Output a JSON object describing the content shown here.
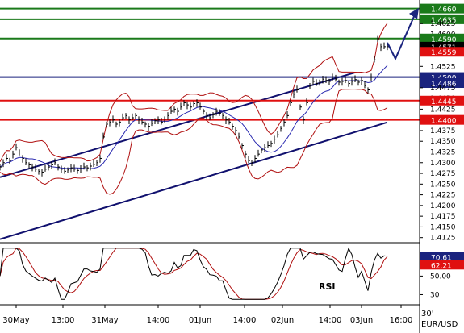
{
  "chart_data": {
    "type": "line",
    "symbol": "EUR/USD",
    "timeframe": "30'",
    "price_axis": {
      "ylim": [
        1.4115,
        1.468
      ],
      "ticks": [
        "1.4660",
        "1.4635",
        "1.4625",
        "1.4600",
        "1.4590",
        "1.4571",
        "1.4559",
        "1.4525",
        "1.4500",
        "1.4486",
        "1.4475",
        "1.4450",
        "1.4445",
        "1.4425",
        "1.4400",
        "1.4375",
        "1.4350",
        "1.4325",
        "1.4300",
        "1.4275",
        "1.4250",
        "1.4225",
        "1.4200",
        "1.4175",
        "1.4150",
        "1.4125"
      ]
    },
    "x_labels": [
      "30May",
      "13:00",
      "31May",
      "14:00",
      "01Jun",
      "14:00",
      "02Jun",
      "14:00",
      "03Jun",
      "16:00"
    ],
    "horizontal_levels": [
      {
        "value": 1.466,
        "label": "1.4660",
        "color": "#1a7a1a"
      },
      {
        "value": 1.4635,
        "label": "1.4635",
        "color": "#1a7a1a"
      },
      {
        "value": 1.459,
        "label": "1.4590",
        "color": "#1a7a1a"
      },
      {
        "value": 1.45,
        "label": "1.4500",
        "color": "#1a237e"
      },
      {
        "value": 1.4445,
        "label": "1.4445",
        "color": "#e01010"
      },
      {
        "value": 1.44,
        "label": "1.4400",
        "color": "#e01010"
      }
    ],
    "price_markers": [
      {
        "label": "1.4571",
        "color": "#000000"
      },
      {
        "label": "1.4559",
        "color": "#e01010"
      },
      {
        "label": "1.4486",
        "color": "#1a237e"
      }
    ],
    "price_series": {
      "x": [
        0,
        4,
        8,
        12,
        16,
        20,
        24,
        28,
        32,
        36,
        40,
        44,
        48,
        52,
        56,
        60,
        64,
        68,
        72,
        76,
        80,
        84,
        88,
        92,
        96,
        100,
        104,
        108,
        112,
        116,
        120,
        124,
        128,
        132,
        136,
        140,
        144,
        148,
        152,
        156,
        160,
        164,
        168,
        172,
        176,
        180,
        184,
        188,
        192,
        196,
        200,
        204,
        208,
        212,
        216,
        220,
        224,
        228,
        232,
        236,
        240,
        244,
        248,
        252,
        256,
        260,
        264,
        268,
        272,
        276,
        280,
        284,
        288,
        292,
        296,
        300,
        304,
        308,
        312,
        316,
        320,
        324,
        328,
        332,
        336,
        340,
        344,
        348,
        352,
        356,
        360,
        364,
        368,
        372,
        376,
        380,
        384,
        388,
        392,
        396,
        400,
        404,
        408,
        412,
        416,
        420,
        424,
        428,
        432,
        436,
        440,
        444,
        448,
        452,
        456,
        460,
        464,
        468,
        472,
        476,
        480
      ],
      "close": [
        1.429,
        1.43,
        1.431,
        1.4305,
        1.432,
        1.4335,
        1.4325,
        1.431,
        1.43,
        1.4295,
        1.429,
        1.4285,
        1.428,
        1.4278,
        1.4285,
        1.429,
        1.4295,
        1.43,
        1.429,
        1.4285,
        1.428,
        1.4283,
        1.4288,
        1.4285,
        1.4282,
        1.4286,
        1.429,
        1.4288,
        1.4292,
        1.4296,
        1.43,
        1.431,
        1.436,
        1.439,
        1.4395,
        1.44,
        1.439,
        1.4395,
        1.4405,
        1.441,
        1.44,
        1.4405,
        1.441,
        1.44,
        1.4395,
        1.439,
        1.4385,
        1.4392,
        1.4398,
        1.44,
        1.4395,
        1.4402,
        1.441,
        1.442,
        1.4425,
        1.442,
        1.443,
        1.444,
        1.4435,
        1.443,
        1.4438,
        1.444,
        1.443,
        1.442,
        1.441,
        1.4405,
        1.4412,
        1.442,
        1.4415,
        1.441,
        1.44,
        1.4395,
        1.4385,
        1.4375,
        1.436,
        1.434,
        1.432,
        1.4305,
        1.43,
        1.431,
        1.432,
        1.433,
        1.4335,
        1.434,
        1.4345,
        1.4355,
        1.4365,
        1.438,
        1.4395,
        1.441,
        1.444,
        1.446,
        1.447,
        1.443,
        1.44,
        1.444,
        1.448,
        1.449,
        1.4485,
        1.4488,
        1.4495,
        1.4492,
        1.449,
        1.45,
        1.4495,
        1.4488,
        1.449,
        1.4492,
        1.4485,
        1.449,
        1.4494,
        1.4488,
        1.4492,
        1.448,
        1.447,
        1.45,
        1.454,
        1.459,
        1.4571,
        1.4571,
        1.4571
      ]
    },
    "forecast_arrow": {
      "from": [
        480,
        1.4571
      ],
      "to": [
        515,
        1.465
      ]
    },
    "rsi_panel": {
      "label": "RSI",
      "ylim": [
        20,
        85
      ],
      "ticks": [
        "70.61",
        "62.21",
        "50.00",
        "30"
      ],
      "rsi_markers": [
        {
          "label": "70.61",
          "color": "#1a237e"
        },
        {
          "label": "62.21",
          "color": "#e01010"
        }
      ]
    }
  }
}
